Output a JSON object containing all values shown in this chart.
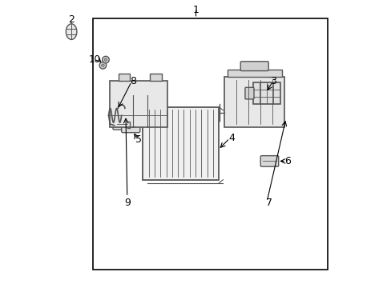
{
  "background_color": "#ffffff",
  "border_color": "#000000",
  "line_color": "#555555",
  "fig_width": 4.89,
  "fig_height": 3.6,
  "dpi": 100
}
